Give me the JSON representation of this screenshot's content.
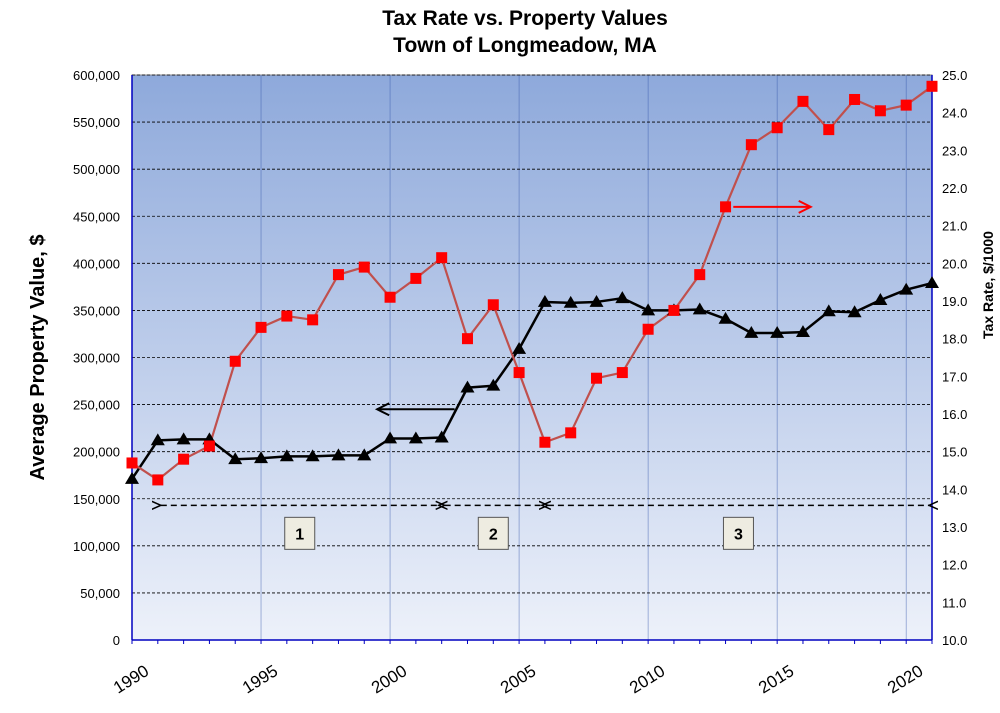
{
  "chart_data": {
    "type": "line",
    "title_line1": "Tax Rate vs. Property Values",
    "title_line2": "Town of Longmeadow, MA",
    "ylabel_left": "Average Property  Value, $",
    "ylabel_right": "Tax Rate, $/1000",
    "ylim_left": [
      0,
      600000
    ],
    "ylim_right": [
      10.0,
      25.0
    ],
    "xlim": [
      1990,
      2021
    ],
    "x_tick_labels": [
      "1990",
      "1995",
      "2000",
      "2005",
      "2010",
      "2015",
      "2020"
    ],
    "x_tick_values": [
      1990,
      1995,
      2000,
      2005,
      2010,
      2015,
      2020
    ],
    "y_left_tick_labels": [
      "0",
      "50,000",
      "100,000",
      "150,000",
      "200,000",
      "250,000",
      "300,000",
      "350,000",
      "400,000",
      "450,000",
      "500,000",
      "550,000",
      "600,000"
    ],
    "y_left_tick_values": [
      0,
      50000,
      100000,
      150000,
      200000,
      250000,
      300000,
      350000,
      400000,
      450000,
      500000,
      550000,
      600000
    ],
    "y_right_tick_labels": [
      "10.0",
      "11.0",
      "12.0",
      "13.0",
      "14.0",
      "15.0",
      "16.0",
      "17.0",
      "18.0",
      "19.0",
      "20.0",
      "21.0",
      "22.0",
      "23.0",
      "24.0",
      "25.0"
    ],
    "y_right_tick_values": [
      10,
      11,
      12,
      13,
      14,
      15,
      16,
      17,
      18,
      19,
      20,
      21,
      22,
      23,
      24,
      25
    ],
    "series": [
      {
        "name": "Average Property Value",
        "axis": "left",
        "marker": "triangle",
        "color": "#000000",
        "x": [
          1990,
          1991,
          1992,
          1993,
          1994,
          1995,
          1996,
          1997,
          1998,
          1999,
          2000,
          2001,
          2002,
          2003,
          2004,
          2005,
          2006,
          2007,
          2008,
          2009,
          2010,
          2011,
          2012,
          2013,
          2014,
          2015,
          2016,
          2017,
          2018,
          2019,
          2020,
          2021
        ],
        "values": [
          171000,
          212000,
          213000,
          213000,
          192000,
          193000,
          195000,
          195000,
          196000,
          196000,
          214000,
          214000,
          215000,
          268000,
          270000,
          309000,
          359000,
          358000,
          359000,
          363000,
          350000,
          350000,
          351000,
          341000,
          326000,
          326000,
          327000,
          349000,
          348000,
          361000,
          372000,
          379000
        ]
      },
      {
        "name": "Tax Rate",
        "axis": "right",
        "marker": "square",
        "color": "#c0504d",
        "marker_color": "#ff0000",
        "x": [
          1990,
          1991,
          1992,
          1993,
          1994,
          1995,
          1996,
          1997,
          1998,
          1999,
          2000,
          2001,
          2002,
          2003,
          2004,
          2005,
          2006,
          2007,
          2008,
          2009,
          2010,
          2011,
          2012,
          2013,
          2014,
          2015,
          2016,
          2017,
          2018,
          2019,
          2020,
          2021
        ],
        "values": [
          14.7,
          14.25,
          14.8,
          15.15,
          17.4,
          18.3,
          18.6,
          18.5,
          19.7,
          19.9,
          19.1,
          19.6,
          20.15,
          18.0,
          18.9,
          17.1,
          15.25,
          15.5,
          16.95,
          17.1,
          18.25,
          18.75,
          19.7,
          21.5,
          23.15,
          23.6,
          24.3,
          23.55,
          24.35,
          24.05,
          24.2,
          24.7
        ]
      }
    ],
    "period_arrows": [
      {
        "label": "1",
        "start": 1991,
        "end": 2002
      },
      {
        "label": "2",
        "start": 2002,
        "end": 2006
      },
      {
        "label": "3",
        "start": 2006,
        "end": 2021
      }
    ],
    "axis_arrows": [
      {
        "points_to": "left",
        "series": "Average Property Value",
        "x_from": 2002.5,
        "x_to": 1999.5,
        "y_left": 245000
      },
      {
        "points_to": "right",
        "series": "Tax Rate",
        "x_from": 2013.3,
        "x_to": 2016.3,
        "y_right": 21.5
      }
    ],
    "colors": {
      "plot_top": "#8ea9db",
      "plot_bottom": "#edf1fa",
      "value_line": "#000000",
      "rate_line": "#c0504d",
      "rate_marker": "#ff0000",
      "axis": "#0000c0",
      "box_fill": "#eeece1"
    }
  }
}
